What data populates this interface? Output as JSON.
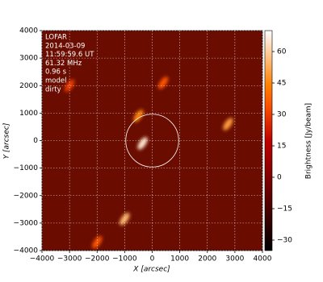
{
  "chart_data": {
    "type": "image",
    "annotations": [
      "LOFAR",
      "2014-03-09",
      "11:59:59.6 UT",
      "61.32 MHz",
      "0.96 s",
      "model",
      "dirty"
    ],
    "xlabel": "X [arcsec]",
    "ylabel": "Y [arcsec]",
    "colorbar_label": "Brightness [Jy/beam]",
    "xlim": [
      -4000,
      4000
    ],
    "ylim": [
      -4000,
      4000
    ],
    "xticks": [
      {
        "value": -4000,
        "label": "−4000"
      },
      {
        "value": -3000,
        "label": "−3000"
      },
      {
        "value": -2000,
        "label": "−2000"
      },
      {
        "value": -1000,
        "label": "−1000"
      },
      0,
      1000,
      2000,
      3000,
      4000
    ],
    "yticks": [
      {
        "value": -4000,
        "label": "−4000"
      },
      {
        "value": -3000,
        "label": "−3000"
      },
      {
        "value": -2000,
        "label": "−2000"
      },
      {
        "value": -1000,
        "label": "−1000"
      },
      0,
      1000,
      2000,
      3000,
      4000
    ],
    "clim": [
      -35,
      70
    ],
    "cticks": [
      {
        "value": -30,
        "label": "−30"
      },
      {
        "value": -15,
        "label": "−15"
      },
      0,
      15,
      30,
      45,
      60
    ],
    "grid": true,
    "circle": {
      "x": 0,
      "y": 0,
      "r": 960
    },
    "sources": {
      "x": [
        -350,
        -500,
        -1000,
        2750,
        -2000,
        400,
        -3000
      ],
      "y": [
        -100,
        900,
        -2850,
        600,
        -3700,
        2100,
        2000
      ],
      "values": [
        65,
        45,
        55,
        50,
        35,
        35,
        30
      ]
    }
  }
}
